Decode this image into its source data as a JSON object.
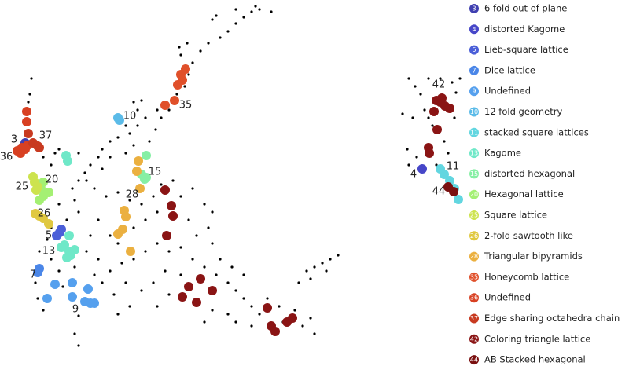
{
  "chart_data": {
    "type": "scatter",
    "xlim": [
      0,
      600
    ],
    "ylim": [
      466,
      0
    ],
    "points": {
      "color": "#000000",
      "x": [
        325,
        320,
        310,
        300,
        290,
        280,
        265,
        255,
        245,
        240,
        235,
        225,
        215,
        205,
        198,
        190,
        270,
        275,
        300,
        330,
        345,
        230,
        228,
        238,
        170,
        180,
        175,
        160,
        165,
        175,
        185,
        200,
        150,
        140,
        130,
        125,
        115,
        108,
        100,
        92,
        140,
        130,
        160,
        170,
        38,
        36,
        40,
        55,
        65,
        70,
        75,
        90,
        100,
        110,
        95,
        100,
        85,
        75,
        65,
        60,
        50,
        45,
        48,
        55,
        65,
        75,
        80,
        95,
        100,
        95,
        100,
        120,
        135,
        150,
        165,
        180,
        195,
        200,
        185,
        170,
        150,
        140,
        125,
        115,
        110,
        125,
        140,
        155,
        170,
        185,
        200,
        215,
        230,
        245,
        260,
        275,
        290,
        240,
        250,
        265,
        270,
        280,
        295,
        230,
        245,
        220,
        205,
        230,
        210,
        195,
        180,
        160,
        145,
        130,
        120,
        165,
        150,
        200,
        215,
        300,
        310,
        320,
        330,
        340,
        355,
        360,
        375,
        385,
        395,
        400,
        320,
        300,
        290,
        270,
        260,
        380,
        390,
        400,
        410,
        420,
        430,
        415,
        395,
        270,
        260,
        310,
        520,
        528,
        535,
        540,
        545,
        550,
        525,
        518,
        520,
        530,
        575,
        580,
        578,
        565,
        570,
        555,
        585,
        545,
        512,
        560
      ],
      "y": [
        8,
        15,
        22,
        30,
        40,
        48,
        55,
        65,
        80,
        95,
        110,
        120,
        140,
        150,
        165,
        180,
        25,
        20,
        12,
        12,
        15,
        70,
        60,
        55,
        130,
        128,
        140,
        160,
        170,
        160,
        150,
        140,
        175,
        180,
        190,
        200,
        210,
        220,
        230,
        240,
        200,
        215,
        195,
        185,
        120,
        130,
        100,
        200,
        210,
        195,
        190,
        205,
        195,
        230,
        255,
        270,
        280,
        260,
        290,
        305,
        320,
        360,
        380,
        395,
        330,
        345,
        365,
        340,
        402,
        425,
        440,
        240,
        250,
        245,
        255,
        260,
        250,
        270,
        280,
        290,
        310,
        300,
        280,
        300,
        320,
        330,
        345,
        335,
        330,
        320,
        310,
        320,
        315,
        330,
        340,
        350,
        360,
        280,
        300,
        290,
        310,
        330,
        340,
        250,
        240,
        230,
        235,
        350,
        345,
        360,
        370,
        360,
        375,
        360,
        350,
        390,
        400,
        390,
        375,
        370,
        380,
        390,
        400,
        380,
        390,
        410,
        395,
        415,
        405,
        425,
        415,
        410,
        400,
        395,
        410,
        360,
        345,
        340,
        335,
        330,
        325,
        345,
        355,
        270,
        260,
        350,
        100,
        110,
        120,
        140,
        150,
        160,
        150,
        190,
        210,
        200,
        105,
        118,
        150,
        180,
        195,
        210,
        100,
        100,
        145,
        100
      ]
    },
    "series": [
      {
        "name": "6 fold out of plane",
        "label": "3",
        "color": "#3f3fb0",
        "x": [
          32,
          28
        ],
        "y": [
          182,
          188
        ],
        "label_x": 18,
        "label_y": 178
      },
      {
        "name": "distorted Kagome",
        "label": "4",
        "color": "#4646c8",
        "x": [
          537
        ],
        "y": [
          215
        ],
        "label_x": 526,
        "label_y": 222
      },
      {
        "name": "Lieb-square lattice",
        "label": "5",
        "color": "#4b5fd8",
        "x": [
          72,
          76,
          78
        ],
        "y": [
          300,
          296,
          292
        ],
        "label_x": 62,
        "label_y": 300
      },
      {
        "name": "Dice lattice",
        "label": "7",
        "color": "#4a86e8",
        "x": [
          50,
          48
        ],
        "y": [
          342,
          347
        ],
        "label_x": 42,
        "label_y": 350
      },
      {
        "name": "Undefined",
        "label": "9",
        "color": "#55a0ee",
        "x": [
          70,
          92,
          60,
          92,
          108,
          115,
          120,
          112
        ],
        "y": [
          362,
          360,
          380,
          378,
          384,
          386,
          386,
          368
        ],
        "label_x": 96,
        "label_y": 394
      },
      {
        "name": "12 fold geometry",
        "label": "10",
        "color": "#5bbbe8",
        "x": [
          150,
          152
        ],
        "y": [
          150,
          153
        ],
        "label_x": 165,
        "label_y": 148
      },
      {
        "name": "stacked square lattices",
        "label": "11",
        "color": "#62d6e0",
        "x": [
          560,
          565,
          572,
          578,
          583
        ],
        "y": [
          215,
          222,
          230,
          240,
          254
        ],
        "label_x": 576,
        "label_y": 212
      },
      {
        "name": "Kagome",
        "label": "13",
        "color": "#6fe8c8",
        "x": [
          88,
          82,
          88,
          95,
          90,
          85,
          78,
          84,
          86
        ],
        "y": [
          300,
          312,
          320,
          318,
          325,
          328,
          315,
          198,
          205
        ],
        "label_x": 62,
        "label_y": 320
      },
      {
        "name": "distorted hexagonal",
        "label": "15",
        "color": "#86efa4",
        "x": [
          186,
          180,
          186,
          184
        ],
        "y": [
          198,
          222,
          226,
          228
        ],
        "label_x": 197,
        "label_y": 219
      },
      {
        "name": "Hexagonal lattice",
        "label": "20",
        "color": "#a4f073",
        "x": [
          52,
          55,
          62,
          50,
          55
        ],
        "y": [
          240,
          250,
          245,
          255,
          232
        ],
        "label_x": 66,
        "label_y": 229
      },
      {
        "name": "Square lattice",
        "label": "25",
        "color": "#cde34e",
        "x": [
          42,
          44,
          48,
          46
        ],
        "y": [
          225,
          232,
          238,
          242
        ],
        "label_x": 28,
        "label_y": 238
      },
      {
        "name": "2-fold sawtooth like",
        "label": "26",
        "color": "#e0c840",
        "x": [
          45,
          50,
          55,
          62
        ],
        "y": [
          272,
          275,
          278,
          285
        ],
        "label_x": 56,
        "label_y": 272
      },
      {
        "name": "Triangular bipyramids",
        "label": "28",
        "color": "#ebb040",
        "x": [
          176,
          174,
          178,
          158,
          160,
          156,
          150,
          166
        ],
        "y": [
          205,
          218,
          240,
          268,
          276,
          292,
          298,
          320
        ],
        "label_x": 168,
        "label_y": 248
      },
      {
        "name": "Honeycomb lattice",
        "label": "35",
        "color": "#e0502a",
        "x": [
          230,
          236,
          232,
          226,
          222,
          210
        ],
        "y": [
          95,
          88,
          102,
          108,
          128,
          134
        ],
        "label_x": 236,
        "label_y": 134
      },
      {
        "name": "Undefined",
        "label": "36",
        "color": "#d84022",
        "x": [
          22,
          28,
          35,
          26,
          32,
          34,
          34
        ],
        "y": [
          192,
          188,
          185,
          195,
          190,
          142,
          155
        ],
        "label_x": 8,
        "label_y": 200
      },
      {
        "name": "Edge sharing octahedra chain",
        "label": "37",
        "color": "#c83a20",
        "x": [
          42,
          48,
          50,
          36
        ],
        "y": [
          182,
          186,
          188,
          170
        ],
        "label_x": 58,
        "label_y": 173
      },
      {
        "name": "Coloring triangle lattice",
        "label": "42",
        "color": "#8a1414",
        "x": [
          560,
          566,
          572,
          555,
          552,
          562,
          556,
          545,
          546,
          210,
          218,
          220,
          212,
          232,
          240,
          250,
          255,
          270,
          340,
          345,
          350,
          365,
          372
        ],
        "y": [
          130,
          135,
          138,
          128,
          142,
          125,
          165,
          188,
          195,
          242,
          262,
          275,
          300,
          378,
          365,
          385,
          355,
          370,
          392,
          415,
          422,
          410,
          405
        ],
        "label_x": 558,
        "label_y": 108
      },
      {
        "name": "AB Stacked hexagonal",
        "label": "44",
        "color": "#7a1010",
        "x": [
          570,
          577
        ],
        "y": [
          238,
          244
        ],
        "label_x": 558,
        "label_y": 244
      }
    ]
  }
}
